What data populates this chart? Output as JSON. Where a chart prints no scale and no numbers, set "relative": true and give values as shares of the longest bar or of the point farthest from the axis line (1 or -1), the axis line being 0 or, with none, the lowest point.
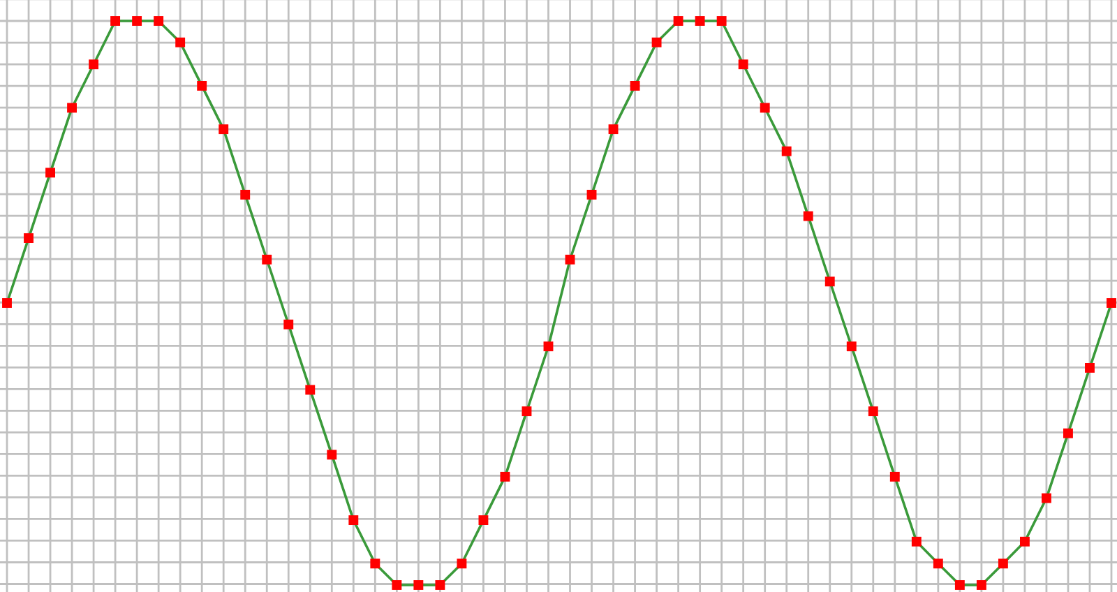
{
  "chart_data": {
    "type": "line",
    "relative": true,
    "grid": true,
    "marker": "square",
    "line_style": "solid",
    "categories": [
      null,
      null,
      null,
      null,
      null,
      null,
      null,
      null,
      null,
      null,
      null,
      null,
      null,
      null,
      null,
      null,
      null,
      null,
      null,
      null,
      null,
      null,
      null,
      null,
      null,
      null,
      null,
      null,
      null,
      null,
      null,
      null,
      null,
      null,
      null,
      null,
      null,
      null,
      null,
      null,
      null,
      null,
      null,
      null,
      null,
      null,
      null,
      null,
      null,
      null,
      null,
      null
    ],
    "series": [
      {
        "color": "#3a9a3a",
        "colors": [
          "#ff0000",
          "#ff0000",
          "#ff0000",
          "#ff0000",
          "#ff0000",
          "#ff0000",
          "#ff0000",
          "#ff0000",
          "#ff0000",
          "#ff0000",
          "#ff0000",
          "#ff0000",
          "#ff0000",
          "#ff0000",
          "#ff0000",
          "#ff0000",
          "#ff0000",
          "#ff0000",
          "#ff0000",
          "#ff0000",
          "#ff0000",
          "#ff0000",
          "#ff0000",
          "#ff0000",
          "#ff0000",
          "#ff0000",
          "#ff0000",
          "#ff0000",
          "#ff0000",
          "#ff0000",
          "#ff0000",
          "#ff0000",
          "#ff0000",
          "#ff0000",
          "#ff0000",
          "#ff0000",
          "#ff0000",
          "#ff0000",
          "#ff0000",
          "#ff0000",
          "#ff0000",
          "#ff0000",
          "#ff0000",
          "#ff0000",
          "#ff0000",
          "#ff0000",
          "#ff0000",
          "#ff0000",
          "#ff0000",
          "#ff0000",
          "#ff0000",
          "#ff0000"
        ],
        "values": [
          0.5,
          0.615,
          0.731,
          0.846,
          0.923,
          1,
          1,
          1,
          0.962,
          0.885,
          0.808,
          0.692,
          0.577,
          0.462,
          0.346,
          0.231,
          0.115,
          0.038,
          0,
          0,
          0,
          0.038,
          0.115,
          0.192,
          0.308,
          0.423,
          0.577,
          0.692,
          0.808,
          0.885,
          0.962,
          1,
          1,
          1,
          0.923,
          0.846,
          0.769,
          0.654,
          0.538,
          0.423,
          0.308,
          0.192,
          0.077,
          0.038,
          0,
          0,
          0.038,
          0.077,
          0.154,
          0.269,
          0.385,
          0.5
        ]
      }
    ]
  }
}
